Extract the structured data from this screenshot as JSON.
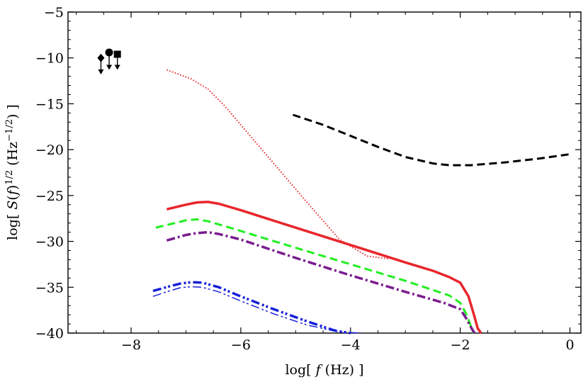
{
  "chart_data": {
    "type": "line",
    "title": "",
    "xlabel": "log[ f (Hz) ]",
    "ylabel": "log[ S(f)^1/2 (Hz^-1/2) ]",
    "xlim": [
      -9.15,
      0.2
    ],
    "ylim": [
      -40,
      -5
    ],
    "x_ticks": [
      -8,
      -6,
      -4,
      -2,
      0
    ],
    "y_ticks": [
      -5,
      -10,
      -15,
      -20,
      -25,
      -30,
      -35,
      -40
    ],
    "x_tick_labels": [
      "−8",
      "−6",
      "−4",
      "−2",
      "0"
    ],
    "y_tick_labels": [
      "−5",
      "−10",
      "−15",
      "−20",
      "−25",
      "−30",
      "−35",
      "−40"
    ],
    "grid": false,
    "series": [
      {
        "name": "red dotted",
        "color": "#e8262b",
        "style": "dotted",
        "width": 2,
        "x": [
          -7.35,
          -6.9,
          -6.6,
          -6.3,
          -5.9,
          -5.4,
          -4.8,
          -4.2,
          -3.7,
          -3.3
        ],
        "y": [
          -11.3,
          -12.3,
          -13.4,
          -15.2,
          -18.0,
          -21.5,
          -25.7,
          -29.8,
          -31.6,
          -31.9
        ]
      },
      {
        "name": "red solid",
        "color": "#e8262b",
        "style": "solid",
        "width": 3.5,
        "x": [
          -7.35,
          -7.0,
          -6.8,
          -6.6,
          -6.4,
          -6.0,
          -5.0,
          -4.0,
          -3.0,
          -2.5,
          -2.2,
          -2.0,
          -1.85,
          -1.75,
          -1.68,
          -1.62
        ],
        "y": [
          -26.5,
          -26.0,
          -25.75,
          -25.7,
          -25.9,
          -26.6,
          -28.5,
          -30.4,
          -32.3,
          -33.2,
          -33.9,
          -34.5,
          -36.0,
          -38.0,
          -39.5,
          -40.0
        ]
      },
      {
        "name": "green dashed",
        "color": "#22ee22",
        "style": "dashed",
        "width": 3,
        "x": [
          -7.55,
          -7.2,
          -7.0,
          -6.8,
          -6.6,
          -6.2,
          -5.0,
          -4.0,
          -3.0,
          -2.2,
          -2.0,
          -1.9,
          -1.82,
          -1.76
        ],
        "y": [
          -28.5,
          -28.0,
          -27.7,
          -27.6,
          -27.8,
          -28.5,
          -30.7,
          -32.5,
          -34.3,
          -35.9,
          -36.7,
          -37.8,
          -39.0,
          -40.0
        ]
      },
      {
        "name": "purple dash-dot",
        "color": "#7a1c8e",
        "style": "dashdot",
        "width": 3.5,
        "x": [
          -7.35,
          -7.0,
          -6.8,
          -6.6,
          -6.4,
          -6.0,
          -5.0,
          -4.0,
          -3.0,
          -2.3,
          -2.0,
          -1.9,
          -1.8,
          -1.74
        ],
        "y": [
          -29.9,
          -29.3,
          -29.1,
          -29.0,
          -29.2,
          -29.8,
          -31.8,
          -33.7,
          -35.5,
          -36.7,
          -37.4,
          -38.3,
          -39.4,
          -40.0
        ]
      },
      {
        "name": "blue dash-dot-dot thick",
        "color": "#1720d9",
        "style": "dashdotdot",
        "width": 3.5,
        "x": [
          -7.6,
          -7.3,
          -7.1,
          -6.9,
          -6.7,
          -6.4,
          -6.0,
          -5.4,
          -4.8,
          -4.3,
          -4.0
        ],
        "y": [
          -35.4,
          -34.9,
          -34.6,
          -34.45,
          -34.5,
          -35.0,
          -36.0,
          -37.4,
          -38.7,
          -39.7,
          -40.0
        ]
      },
      {
        "name": "blue dash-dot-dot thin",
        "color": "#1720d9",
        "style": "dashdotdot",
        "width": 1.5,
        "x": [
          -7.6,
          -7.3,
          -7.1,
          -6.9,
          -6.7,
          -6.4,
          -6.0,
          -5.4,
          -4.8,
          -4.2,
          -3.8
        ],
        "y": [
          -36.0,
          -35.4,
          -35.05,
          -34.95,
          -35.0,
          -35.5,
          -36.5,
          -37.9,
          -39.1,
          -39.9,
          -40.0
        ]
      },
      {
        "name": "black dashed",
        "color": "#000000",
        "style": "dashed",
        "width": 3,
        "x": [
          -5.05,
          -4.5,
          -4.0,
          -3.5,
          -3.0,
          -2.5,
          -2.2,
          -1.8,
          -1.2,
          -0.6,
          0.0
        ],
        "y": [
          -16.2,
          -17.3,
          -18.5,
          -19.7,
          -20.8,
          -21.5,
          -21.7,
          -21.7,
          -21.4,
          -21.0,
          -20.5
        ]
      }
    ],
    "markers": [
      {
        "shape": "diamond",
        "x": -8.55,
        "y": -10.0,
        "arrow_to": -11.8
      },
      {
        "shape": "circle",
        "x": -8.4,
        "y": -9.4,
        "arrow_to": -11.3
      },
      {
        "shape": "square",
        "x": -8.25,
        "y": -9.6,
        "arrow_to": -11.3
      }
    ]
  }
}
